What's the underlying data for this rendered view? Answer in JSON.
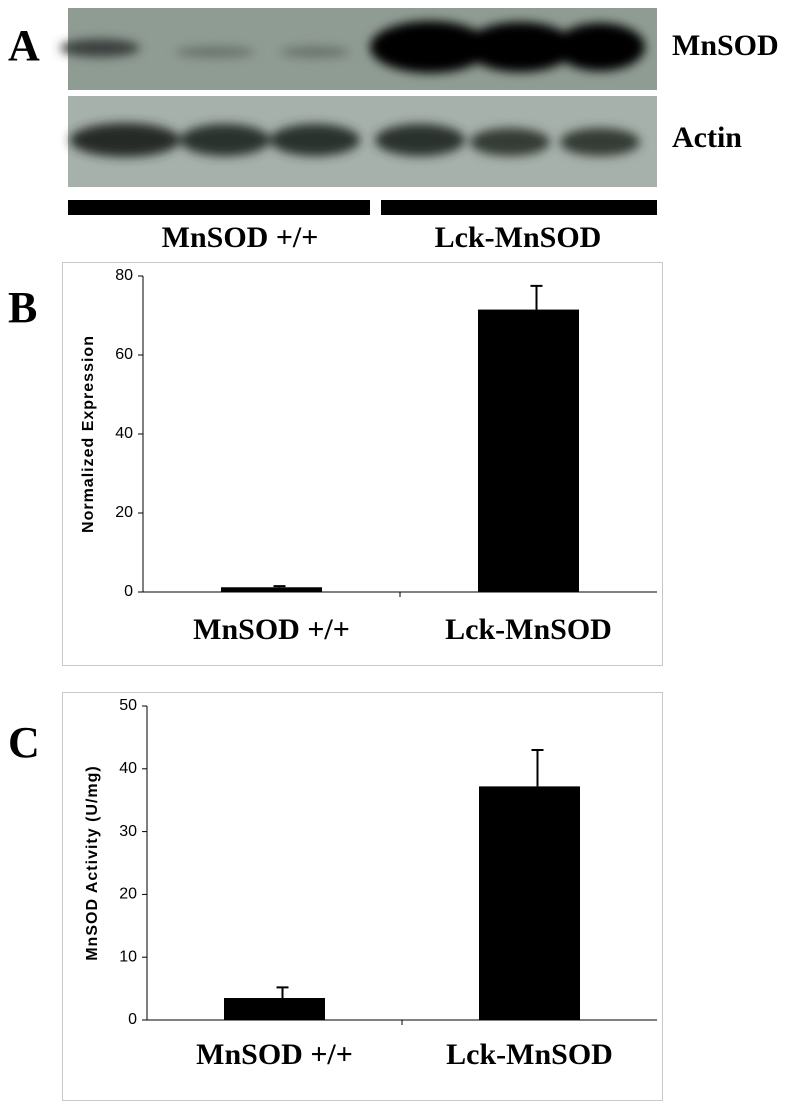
{
  "panel_labels": [
    "A",
    "B",
    "C"
  ],
  "blot": {
    "rows": [
      "MnSOD",
      "Actin"
    ],
    "groups": [
      "MnSOD +/+",
      "Lck-MnSOD"
    ]
  },
  "chart_data": [
    {
      "type": "bar",
      "y_label": "Normalized Expression",
      "categories": [
        "MnSOD +/+",
        "Lck-MnSOD"
      ],
      "values": [
        1.2,
        71.5
      ],
      "errors": [
        0.3,
        6
      ],
      "color": "#000000",
      "ylim": [
        0,
        80
      ],
      "yticks": [
        0,
        20,
        40,
        60,
        80
      ]
    },
    {
      "type": "bar",
      "y_label": "MnSOD Activity (U/mg)",
      "categories": [
        "MnSOD +/+",
        "Lck-MnSOD"
      ],
      "values": [
        3.5,
        37.2
      ],
      "errors": [
        1.7,
        5.8
      ],
      "color": "#000000",
      "ylim": [
        0,
        50
      ],
      "yticks": [
        0,
        10,
        20,
        30,
        40,
        50
      ]
    }
  ]
}
